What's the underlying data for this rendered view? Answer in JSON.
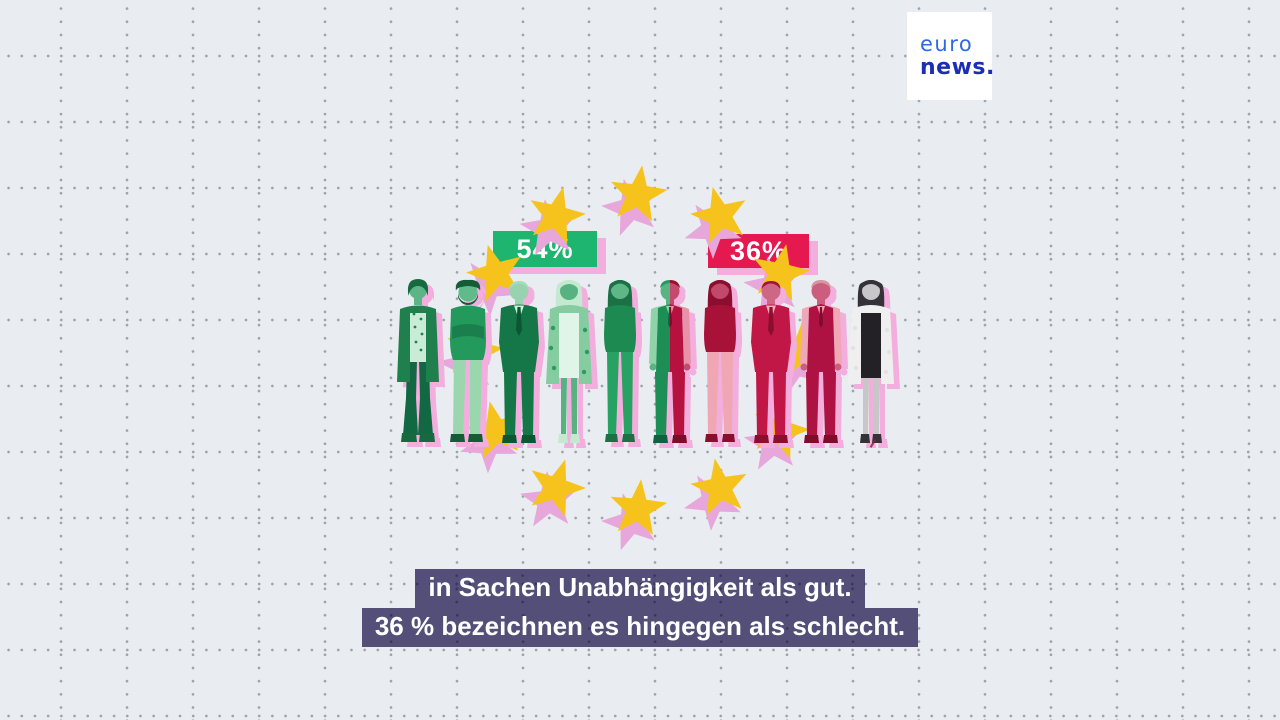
{
  "brand": {
    "name": "euronews",
    "logo_line1": "euro",
    "logo_line2": "news.",
    "logo_color_euro": "#2e6ae6",
    "logo_color_news": "#1b2eb4",
    "logo_bg": "#ffffff"
  },
  "subtitles": {
    "line1": "in Sachen Unabhängigkeit als gut.",
    "line2": "36 % bezeichnen es hingegen als schlecht.",
    "bg_color": "#534f78",
    "text_color": "#ffffff"
  },
  "infographic": {
    "badges": [
      {
        "id": "positive",
        "label": "54%",
        "bg_color": "#1db56f",
        "text_color": "#ffffff",
        "shadow_color": "#f3aede"
      },
      {
        "id": "negative",
        "label": "36%",
        "bg_color": "#e5194f",
        "text_color": "#ffffff",
        "shadow_color": "#f3aede"
      }
    ],
    "stars": {
      "count": 12,
      "icon": "eu-star-icon",
      "color": "#f6c31c",
      "shadow_color": "#e7a7da"
    },
    "shadow_color": "#f3aede",
    "people": [
      {
        "name": "woman-cardigan",
        "variant": "v-cardigan",
        "group": "positive",
        "colors": {
          "a": "#1f7f4d",
          "b": "#c9ecd7",
          "c": "#5db585",
          "d": "#176a40",
          "e": "#136844"
        }
      },
      {
        "name": "man-lean",
        "variant": "v-lean",
        "group": "positive",
        "colors": {
          "a": "#23995c",
          "b": "#9ad7af",
          "c": "#60ba89",
          "d": "#145c37",
          "e": "#1a7f4c"
        }
      },
      {
        "name": "man-suit",
        "variant": "v-suit",
        "group": "positive",
        "colors": {
          "a": "#157747",
          "b": "#cfeedb",
          "c": "#98d2b1",
          "d": "#a5dcbc",
          "e": "#0c5634"
        }
      },
      {
        "name": "woman-leopard-coat",
        "variant": "v-coat",
        "group": "positive",
        "colors": {
          "a": "#85cca1",
          "b": "#e0f4e8",
          "c": "#57b281",
          "d": "#c4e9d0",
          "e": "#2e9a61"
        }
      },
      {
        "name": "woman-slim",
        "variant": "v-slim",
        "group": "positive",
        "colors": {
          "a": "#1d8a52",
          "b": "#28a262",
          "c": "#5db787",
          "d": "#1c7144",
          "e": "#14603a"
        }
      },
      {
        "name": "man-split",
        "variant": "v-vest",
        "group": "split",
        "colors_left": {
          "a": "#1d8e55",
          "b": "#90d3a9",
          "c": "#58b482",
          "d": "#27995e",
          "e": "#116040"
        },
        "colors_right": {
          "a": "#b5123f",
          "b": "#e892a7",
          "c": "#c44a6d",
          "d": "#99102f",
          "e": "#7c0c28"
        }
      },
      {
        "name": "woman-afro",
        "variant": "v-slim",
        "group": "negative",
        "colors": {
          "a": "#a81239",
          "b": "#efa7b4",
          "c": "#c1496c",
          "d": "#8c0e2e",
          "e": "#70061f"
        }
      },
      {
        "name": "man-suit-red",
        "variant": "v-suit",
        "group": "negative",
        "colors": {
          "a": "#c01747",
          "b": "#f3adbb",
          "c": "#cd6784",
          "d": "#a31238",
          "e": "#8c0e2e"
        }
      },
      {
        "name": "man-vest",
        "variant": "v-vest",
        "group": "negative",
        "colors": {
          "a": "#ae1242",
          "b": "#f0a7b6",
          "c": "#ca5e7c",
          "d": "#d794a3",
          "e": "#7e0d2c"
        }
      },
      {
        "name": "woman-white-coat",
        "variant": "v-coat",
        "group": "neutral",
        "colors": {
          "a": "#f0eff0",
          "b": "#232126",
          "c": "#c8c6c9",
          "d": "#343138",
          "e": "#e2e1e3"
        }
      }
    ]
  },
  "background": {
    "color": "#e9edf1",
    "dot_color": "#8b93a0"
  },
  "chart_data": {
    "type": "bar",
    "title": "",
    "categories": [
      "als gut",
      "als schlecht"
    ],
    "values": [
      54,
      36
    ],
    "unit": "%",
    "legend": [
      "grün = 54% (gut)",
      "rot = 36% (schlecht)"
    ],
    "annotations": [
      "Piktogramm: 10 Personen in einem Kreis aus 12 EU-Sternen",
      "5,4 Personen grün eingefärbt, 3,6 rot, 1 Person grau"
    ]
  }
}
